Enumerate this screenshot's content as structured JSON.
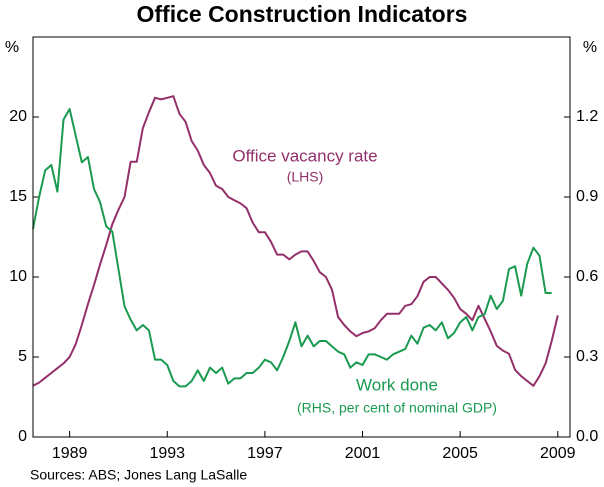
{
  "chart_data": {
    "type": "line",
    "title": "Office Construction Indicators",
    "y_axis_label": "%",
    "y2_axis_label": "%",
    "source": "Sources: ABS; Jones Lang LaSalle",
    "annotations": [
      "Office vacancy rate",
      "(LHS)",
      "Work done",
      "(RHS, per cent of nominal GDP)"
    ],
    "x": [
      1987.5,
      1987.75,
      1988,
      1988.25,
      1988.5,
      1988.75,
      1989,
      1989.25,
      1989.5,
      1989.75,
      1990,
      1990.25,
      1990.5,
      1990.75,
      1991,
      1991.25,
      1991.5,
      1991.75,
      1992,
      1992.25,
      1992.5,
      1992.75,
      1993,
      1993.25,
      1993.5,
      1993.75,
      1994,
      1994.25,
      1994.5,
      1994.75,
      1995,
      1995.25,
      1995.5,
      1995.75,
      1996,
      1996.25,
      1996.5,
      1996.75,
      1997,
      1997.25,
      1997.5,
      1997.75,
      1998,
      1998.25,
      1998.5,
      1998.75,
      1999,
      1999.25,
      1999.5,
      1999.75,
      2000,
      2000.25,
      2000.5,
      2000.75,
      2001,
      2001.25,
      2001.5,
      2001.75,
      2002,
      2002.25,
      2002.5,
      2002.75,
      2003,
      2003.25,
      2003.5,
      2003.75,
      2004,
      2004.25,
      2004.5,
      2004.75,
      2005,
      2005.25,
      2005.5,
      2005.75,
      2006,
      2006.25,
      2006.5,
      2006.75,
      2007,
      2007.25,
      2007.5,
      2007.75,
      2008,
      2008.25,
      2008.5,
      2008.75,
      2009
    ],
    "series": [
      {
        "name": "Office vacancy rate",
        "color": "#93306a",
        "axis": "y",
        "values": [
          3.2,
          3.4,
          3.7,
          4.0,
          4.3,
          4.6,
          5.0,
          5.8,
          7.0,
          8.3,
          9.5,
          10.8,
          12,
          13.3,
          14.2,
          15,
          17.2,
          17.2,
          19.3,
          20.3,
          21.2,
          21.1,
          21.2,
          21.3,
          20.2,
          19.7,
          18.5,
          17.9,
          17,
          16.5,
          15.7,
          15.5,
          15,
          14.8,
          14.6,
          14.3,
          13.4,
          12.8,
          12.8,
          12.2,
          11.4,
          11.4,
          11.1,
          11.4,
          11.6,
          11.6,
          11,
          10.3,
          10,
          9.2,
          7.5,
          7,
          6.6,
          6.3,
          6.5,
          6.6,
          6.8,
          7.3,
          7.7,
          7.7,
          7.7,
          8.2,
          8.3,
          8.8,
          9.7,
          10,
          10,
          9.6,
          9.2,
          8.7,
          8,
          7.7,
          7.3,
          8.2,
          7.4,
          6.6,
          5.7,
          5.4,
          5.2,
          4.2,
          3.8,
          3.5,
          3.2,
          3.8,
          4.6,
          6.0,
          7.6
        ]
      },
      {
        "name": "Work done",
        "color": "#1a9a50",
        "axis": "y2",
        "values": [
          0.78,
          0.9,
          1.0,
          1.02,
          0.92,
          1.19,
          1.23,
          1.13,
          1.03,
          1.05,
          0.93,
          0.88,
          0.79,
          0.77,
          0.63,
          0.49,
          0.44,
          0.4,
          0.42,
          0.4,
          0.29,
          0.29,
          0.27,
          0.21,
          0.19,
          0.19,
          0.21,
          0.25,
          0.21,
          0.26,
          0.24,
          0.26,
          0.2,
          0.22,
          0.22,
          0.24,
          0.24,
          0.26,
          0.29,
          0.28,
          0.25,
          0.3,
          0.36,
          0.43,
          0.34,
          0.38,
          0.34,
          0.36,
          0.36,
          0.34,
          0.32,
          0.31,
          0.26,
          0.28,
          0.27,
          0.31,
          0.31,
          0.3,
          0.29,
          0.31,
          0.32,
          0.33,
          0.38,
          0.35,
          0.41,
          0.42,
          0.4,
          0.43,
          0.37,
          0.39,
          0.43,
          0.45,
          0.4,
          0.45,
          0.46,
          0.53,
          0.48,
          0.51,
          0.63,
          0.64,
          0.53,
          0.65,
          0.71,
          0.68,
          0.54,
          0.54,
          null
        ]
      }
    ],
    "xlim": [
      1987.5,
      2009.5
    ],
    "xticks": [
      1989,
      1993,
      1997,
      2001,
      2005,
      2009
    ],
    "ylim": [
      0,
      25
    ],
    "yticks": [
      0,
      5,
      10,
      15,
      20
    ],
    "y2lim": [
      0,
      1.5
    ],
    "y2ticks": [
      {
        "value": 0,
        "label": "0.0"
      },
      0.3,
      0.6,
      0.9,
      1.2
    ],
    "grid": false
  }
}
